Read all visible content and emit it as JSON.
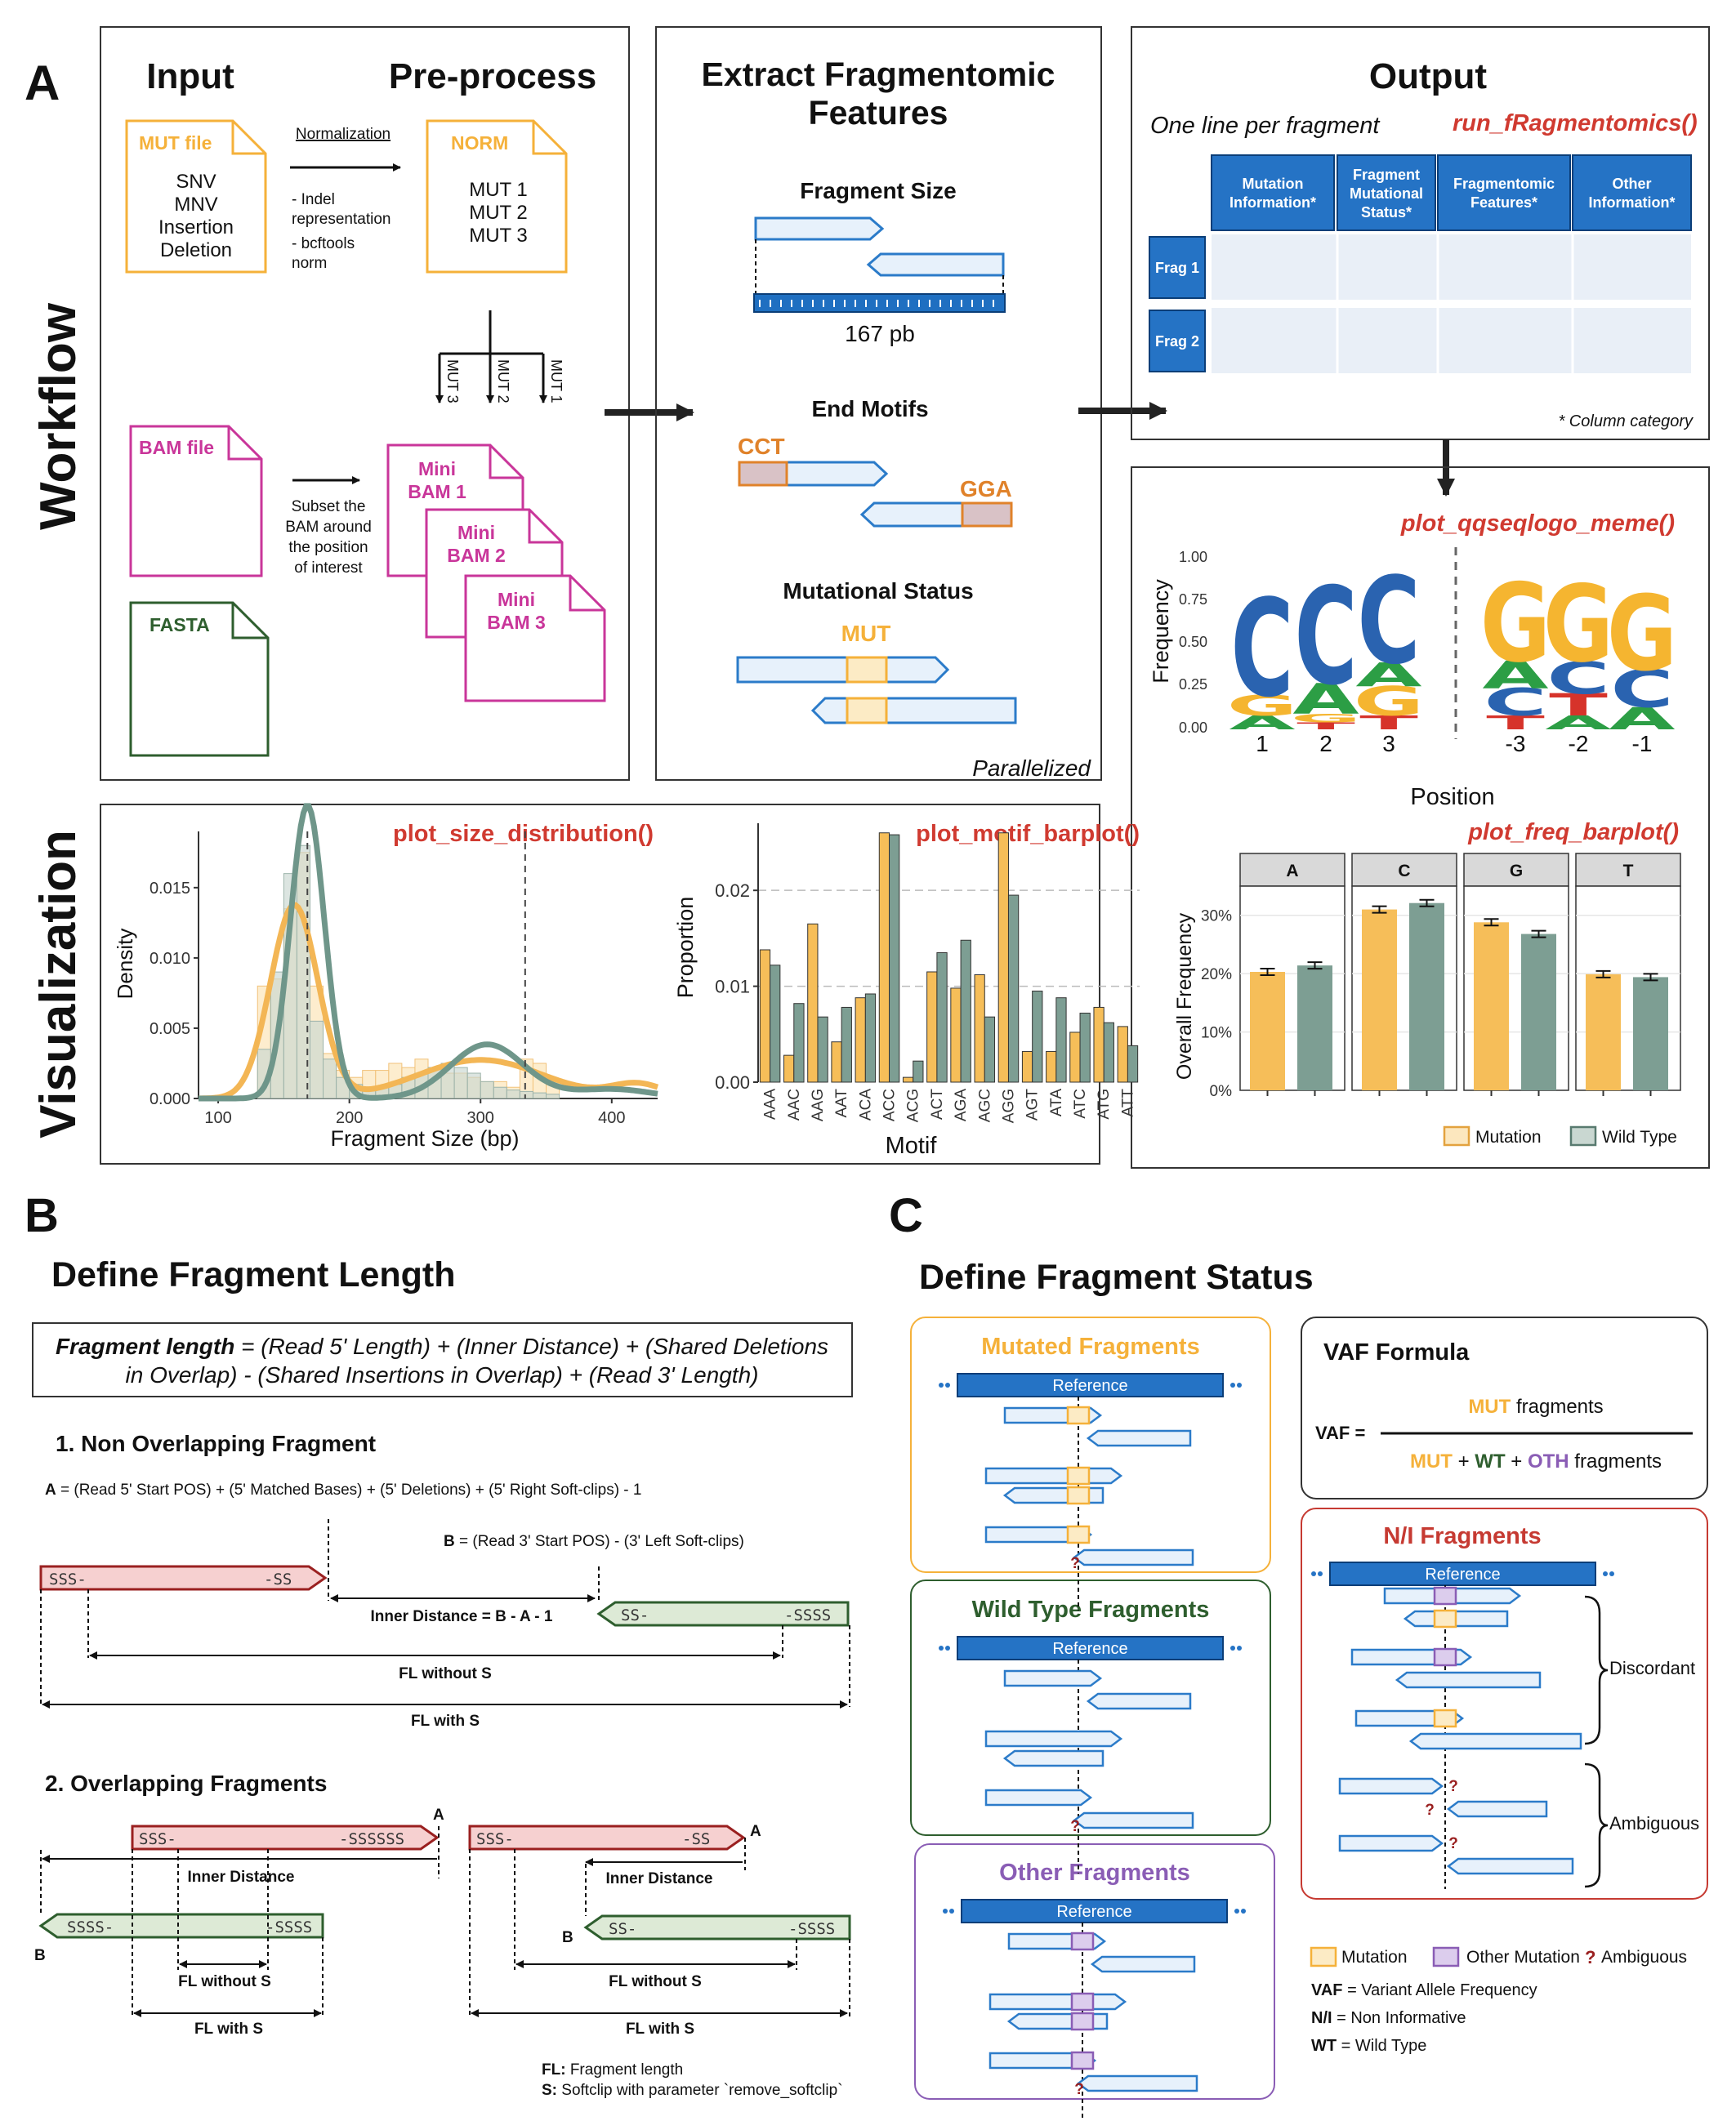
{
  "panelA": {
    "letter": "A",
    "side_workflow": "Workflow",
    "side_visualization": "Visualization",
    "input_title": "Input",
    "preprocess_title": "Pre-process",
    "mut_file": {
      "title": "MUT file",
      "lines": [
        "SNV",
        "MNV",
        "Insertion",
        "Deletion"
      ]
    },
    "normalization": {
      "label": "Normalization",
      "notes": [
        "- Indel",
        "representation",
        "- bcftools",
        "norm"
      ]
    },
    "norm_file": {
      "title": "NORM",
      "lines": [
        "MUT 1",
        "MUT 2",
        "MUT 3"
      ]
    },
    "branches": [
      "MUT 3",
      "MUT 2",
      "MUT 1"
    ],
    "bam_file": "BAM file",
    "subset_note": [
      "Subset the",
      "BAM around",
      "the position",
      "of interest"
    ],
    "mini_bams": [
      [
        "Mini",
        "BAM 1"
      ],
      [
        "Mini",
        "BAM 2"
      ],
      [
        "Mini",
        "BAM 3"
      ]
    ],
    "fasta_file": "FASTA",
    "extract_title": [
      "Extract Fragmentomic",
      "Features"
    ],
    "fragment_size": {
      "title": "Fragment Size",
      "label": "167 pb"
    },
    "end_motifs": {
      "title": "End Motifs",
      "left": "CCT",
      "right": "GGA"
    },
    "mut_status": {
      "title": "Mutational Status",
      "label": "MUT"
    },
    "parallelized": "Parallelized",
    "output": {
      "title": "Output",
      "subtitle": "One line per fragment",
      "function": "run_fRagmentomics()",
      "columns": [
        [
          "Mutation",
          "Information*"
        ],
        [
          "Fragment",
          "Mutational",
          "Status*"
        ],
        [
          "Fragmentomic",
          "Features*"
        ],
        [
          "Other",
          "Information*"
        ]
      ],
      "rows": [
        "Frag 1",
        "Frag 2"
      ],
      "footnote": "* Column category"
    },
    "logo": {
      "function": "plot_qqseqlogo_meme()",
      "ylabel": "Frequency",
      "yticks": [
        "1.00",
        "0.75",
        "0.50",
        "0.25",
        "0.00"
      ],
      "xticks_left": [
        "1",
        "2",
        "3"
      ],
      "xticks_right": [
        "-3",
        "-2",
        "-1"
      ],
      "xlabel": "Position",
      "colors": {
        "C": "#2A63B0",
        "G": "#F5B530",
        "A": "#2C9E45",
        "T": "#D6332A"
      }
    }
  },
  "chart_data": [
    {
      "type": "histogram_density",
      "function": "plot_size_distribution()",
      "xlabel": "Fragment Size (bp)",
      "ylabel": "Density",
      "xlim": [
        85,
        435
      ],
      "ylim": [
        0,
        0.019
      ],
      "xticks": [
        "100",
        "200",
        "300",
        "400"
      ],
      "yticks": [
        "0.000",
        "0.005",
        "0.010",
        "0.015"
      ],
      "vlines": [
        168,
        334
      ],
      "bins_start": 130,
      "bin_width": 10,
      "mutation_hist": [
        0.008,
        0.0085,
        0.0135,
        0.0175,
        0.008,
        0.0032,
        0.002,
        0.0015,
        0.002,
        0.002,
        0.0025,
        0.0022,
        0.0028,
        0.0022,
        0.0018,
        0.0018,
        0.0015,
        0.0012,
        0.0012,
        0.0008,
        0.0028,
        0.0025,
        0.001
      ],
      "wildtype_hist": [
        0.0035,
        0.009,
        0.016,
        0.018,
        0.0055,
        0.0028,
        0.0015,
        0.001,
        0.0008,
        0.0008,
        0.001,
        0.0015,
        0.0018,
        0.0022,
        0.0025,
        0.0022,
        0.0018,
        0.0012,
        0.0008,
        0.0006,
        0.0005,
        0.0004,
        0.0003
      ],
      "series": [
        {
          "name": "Mutation",
          "color": "#F6BE59"
        },
        {
          "name": "Wild Type",
          "color": "#7D9E93"
        }
      ]
    },
    {
      "type": "bar",
      "function": "plot_motif_barplot()",
      "xlabel": "Motif",
      "ylabel": "Proportion",
      "ylim": [
        0,
        0.027
      ],
      "yticks": [
        "0.00",
        "0.01",
        "0.02"
      ],
      "categories": [
        "AAA",
        "AAC",
        "AAG",
        "AAT",
        "ACA",
        "ACC",
        "ACG",
        "ACT",
        "AGA",
        "AGC",
        "AGG",
        "AGT",
        "ATA",
        "ATC",
        "ATG",
        "ATT"
      ],
      "series": [
        {
          "name": "Mutation",
          "values": [
            0.0138,
            0.0028,
            0.0165,
            0.0042,
            0.0088,
            0.026,
            0.0005,
            0.0115,
            0.0098,
            0.0112,
            0.026,
            0.0032,
            0.0032,
            0.0052,
            0.0078,
            0.0058
          ]
        },
        {
          "name": "Wild Type",
          "values": [
            0.0122,
            0.0082,
            0.0068,
            0.0078,
            0.0092,
            0.0258,
            0.0022,
            0.0135,
            0.0148,
            0.0068,
            0.0195,
            0.0095,
            0.0088,
            0.0072,
            0.0062,
            0.0038
          ]
        }
      ]
    },
    {
      "type": "bar",
      "function": "plot_freq_barplot()",
      "ylabel": "Overall Frequency",
      "ylim": [
        0,
        0.35
      ],
      "yticks": [
        "0%",
        "10%",
        "20%",
        "30%"
      ],
      "categories": [
        "A",
        "C",
        "G",
        "T"
      ],
      "series": [
        {
          "name": "Mutation",
          "values": [
            0.203,
            0.31,
            0.288,
            0.199
          ]
        },
        {
          "name": "Wild Type",
          "values": [
            0.214,
            0.321,
            0.268,
            0.194
          ]
        }
      ],
      "legend": [
        "Mutation",
        "Wild Type"
      ]
    }
  ],
  "panelB": {
    "letter": "B",
    "title": "Define Fragment Length",
    "formula": {
      "bold": "Fragment length",
      "rest1": " = (Read 5' Length) + (Inner Distance) + (Shared Deletions",
      "rest2": "in Overlap) - (Shared Insertions in Overlap) + (Read 3' Length)"
    },
    "sec1": "1.  Non Overlapping Fragment",
    "defA": {
      "bold": "A",
      "rest": " = (Read 5' Start POS) + (5' Matched Bases) + (5' Deletions) + (5' Right Soft-clips) - 1"
    },
    "defB": {
      "bold": "B",
      "rest": " = (Read 3' Start POS) - (3' Left Soft-clips)"
    },
    "inner_eq": "Inner Distance = B - A - 1",
    "fl_wo": "FL without S",
    "fl_w": "FL with S",
    "sec2": "2. Overlapping Fragments",
    "inner": "Inner Distance",
    "labA": "A",
    "labB": "B",
    "sss": "SSS-",
    "ss": "-SS",
    "ssssss": "-SSSSSS",
    "ss_dash": "SS-",
    "ssss": "-SSSS",
    "ssss_dash": "SSSS-",
    "legend_fl": {
      "bold": "FL:",
      "rest": " Fragment length"
    },
    "legend_s": {
      "bold": "S:",
      "rest": " Softclip with parameter `remove_softclip`"
    }
  },
  "panelC": {
    "letter": "C",
    "title": "Define Fragment Status",
    "mutated": "Mutated Fragments",
    "wildtype": "Wild Type Fragments",
    "other": "Other Fragments",
    "reference": "Reference",
    "vaf_title": "VAF Formula",
    "vaf_label": "VAF =",
    "vaf_num": {
      "mut": "MUT",
      "rest": " fragments"
    },
    "vaf_den": {
      "mut": "MUT",
      "plus1": " + ",
      "wt": "WT",
      "plus2": " + ",
      "oth": "OTH",
      "rest": " fragments"
    },
    "ni_title": "N/I Fragments",
    "discordant": "Discordant",
    "ambiguous": "Ambiguous",
    "q": "?",
    "legend": {
      "mutation": "Mutation",
      "other": "Other Mutation",
      "ambiguous": "Ambiguous"
    },
    "abbr": [
      {
        "bold": "VAF",
        "rest": " = Variant Allele Frequency"
      },
      {
        "bold": "N/I",
        "rest": "  = Non Informative"
      },
      {
        "bold": "WT",
        "rest": " = Wild Type"
      }
    ]
  }
}
